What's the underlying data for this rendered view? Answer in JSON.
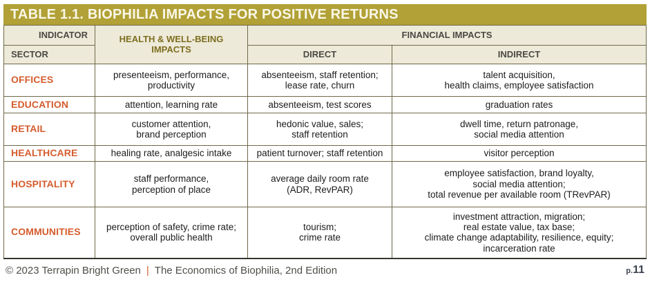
{
  "title_bar": {
    "title": "TABLE 1.1. BIOPHILIA IMPACTS FOR POSITIVE RETURNS"
  },
  "header": {
    "indicator_label": "INDICATOR",
    "sector_label": "SECTOR",
    "health_label": "HEALTH & WELL-BEING\nIMPACTS",
    "financial_label": "FINANCIAL IMPACTS",
    "direct_label": "DIRECT",
    "indirect_label": "INDIRECT"
  },
  "rows": [
    {
      "sector": "OFFICES",
      "health": "presenteeism, performance,\nproductivity",
      "direct": "absenteeism, staff retention;\nlease rate, churn",
      "indirect": "talent acquisition,\nhealth claims, employee satisfaction"
    },
    {
      "sector": "EDUCATION",
      "health": "attention, learning rate",
      "direct": "absenteeism, test scores",
      "indirect": "graduation rates"
    },
    {
      "sector": "RETAIL",
      "health": "customer attention,\nbrand perception",
      "direct": "hedonic value, sales;\nstaff retention",
      "indirect": "dwell time, return patronage,\nsocial media attention"
    },
    {
      "sector": "HEALTHCARE",
      "health": "healing rate, analgesic intake",
      "direct": "patient turnover; staff retention",
      "indirect": "visitor perception"
    },
    {
      "sector": "HOSPITALITY",
      "health": "staff performance,\nperception of place",
      "direct": "average daily room rate\n(ADR, RevPAR)",
      "indirect": "employee satisfaction, brand loyalty,\nsocial media attention;\ntotal revenue per available room (TRevPAR)"
    },
    {
      "sector": "COMMUNITIES",
      "health": "perception of safety, crime rate;\noverall public health",
      "direct": "tourism;\ncrime rate",
      "indirect": "investment attraction, migration;\nreal estate value, tax base;\nclimate change adaptability, resilience, equity;\nincarceration rate"
    }
  ],
  "footer": {
    "copyright": "© 2023 Terrapin Bright Green",
    "separator": "|",
    "source": "The Economics of Biophilia, 2nd Edition",
    "page_prefix": "p.",
    "page_number": "11"
  },
  "colors": {
    "title_bar_bg": "#b1a136",
    "header_bg": "#eeead9",
    "sector_text": "#d55c2d",
    "health_header_text": "#7d6e20",
    "grid_line": "#6e6847",
    "footer_separator": "#d55c2d"
  }
}
